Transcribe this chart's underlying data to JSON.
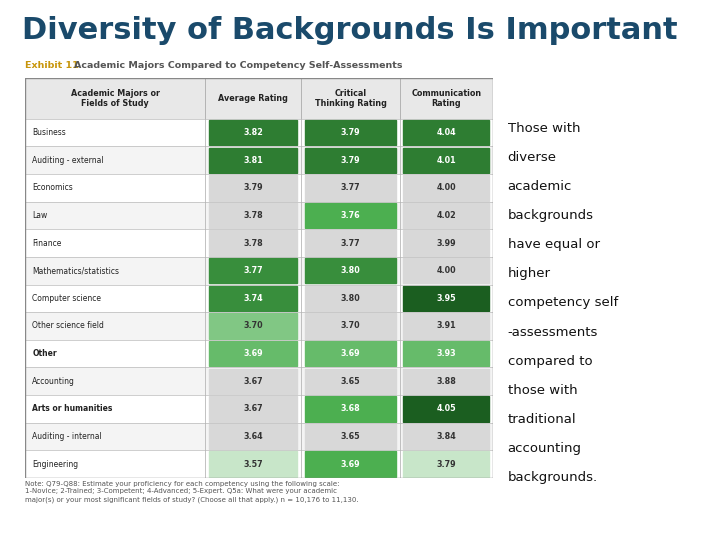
{
  "title": "Diversity of Backgrounds Is Important",
  "title_color": "#1a4a6b",
  "title_fontsize": 22,
  "exhibit_label": "Exhibit 11",
  "exhibit_text": "Academic Majors Compared to Competency Self-Assessments",
  "exhibit_color": "#c8960c",
  "side_text_lines": [
    "Those with",
    "diverse",
    "academic",
    "backgrounds",
    "have equal or",
    "higher",
    "competency self",
    "-assessments",
    "compared to",
    "those with",
    "traditional",
    "accounting",
    "backgrounds."
  ],
  "note_text": "Note: Q79-Q88: Estimate your proficiency for each competency using the following scale:\n1-Novice; 2-Trained; 3-Competent; 4-Advanced; 5-Expert. Q5a: What were your academic\nmajor(s) or your most significant fields of study? (Choose all that apply.) n = 10,176 to 11,130.",
  "col_headers": [
    "Academic Majors or\nFields of Study",
    "Average Rating",
    "Critical\nThinking Rating",
    "Communication\nRating"
  ],
  "rows": [
    {
      "label": "Business",
      "avg": "3.82",
      "crit": "3.79",
      "comm": "4.04",
      "avg_bg": "#2e7d32",
      "crit_bg": "#2e7d32",
      "comm_bg": "#2e7d32",
      "avg_fg": "white",
      "crit_fg": "white",
      "comm_fg": "white",
      "label_bold": false
    },
    {
      "label": "Auditing - external",
      "avg": "3.81",
      "crit": "3.79",
      "comm": "4.01",
      "avg_bg": "#2e7d32",
      "crit_bg": "#2e7d32",
      "comm_bg": "#2e7d32",
      "avg_fg": "white",
      "crit_fg": "white",
      "comm_fg": "white",
      "label_bold": false
    },
    {
      "label": "Economics",
      "avg": "3.79",
      "crit": "3.77",
      "comm": "4.00",
      "avg_bg": "#d8d8d8",
      "crit_bg": "#d8d8d8",
      "comm_bg": "#d8d8d8",
      "avg_fg": "#333333",
      "crit_fg": "#333333",
      "comm_fg": "#333333",
      "label_bold": false
    },
    {
      "label": "Law",
      "avg": "3.78",
      "crit": "3.76",
      "comm": "4.02",
      "avg_bg": "#d8d8d8",
      "crit_bg": "#4caf50",
      "comm_bg": "#d8d8d8",
      "avg_fg": "#333333",
      "crit_fg": "white",
      "comm_fg": "#333333",
      "label_bold": false
    },
    {
      "label": "Finance",
      "avg": "3.78",
      "crit": "3.77",
      "comm": "3.99",
      "avg_bg": "#d8d8d8",
      "crit_bg": "#d8d8d8",
      "comm_bg": "#d8d8d8",
      "avg_fg": "#333333",
      "crit_fg": "#333333",
      "comm_fg": "#333333",
      "label_bold": false
    },
    {
      "label": "Mathematics/statistics",
      "avg": "3.77",
      "crit": "3.80",
      "comm": "4.00",
      "avg_bg": "#388e3c",
      "crit_bg": "#388e3c",
      "comm_bg": "#d8d8d8",
      "avg_fg": "white",
      "crit_fg": "white",
      "comm_fg": "#333333",
      "label_bold": false
    },
    {
      "label": "Computer science",
      "avg": "3.74",
      "crit": "3.80",
      "comm": "3.95",
      "avg_bg": "#388e3c",
      "crit_bg": "#d8d8d8",
      "comm_bg": "#1b5e20",
      "avg_fg": "white",
      "crit_fg": "#333333",
      "comm_fg": "white",
      "label_bold": false
    },
    {
      "label": "Other science field",
      "avg": "3.70",
      "crit": "3.70",
      "comm": "3.91",
      "avg_bg": "#81c784",
      "crit_bg": "#d8d8d8",
      "comm_bg": "#d8d8d8",
      "avg_fg": "#333333",
      "crit_fg": "#333333",
      "comm_fg": "#333333",
      "label_bold": false
    },
    {
      "label": "Other",
      "avg": "3.69",
      "crit": "3.69",
      "comm": "3.93",
      "avg_bg": "#66bb6a",
      "crit_bg": "#66bb6a",
      "comm_bg": "#66bb6a",
      "avg_fg": "white",
      "crit_fg": "white",
      "comm_fg": "white",
      "label_bold": true
    },
    {
      "label": "Accounting",
      "avg": "3.67",
      "crit": "3.65",
      "comm": "3.88",
      "avg_bg": "#d8d8d8",
      "crit_bg": "#d8d8d8",
      "comm_bg": "#d8d8d8",
      "avg_fg": "#333333",
      "crit_fg": "#333333",
      "comm_fg": "#333333",
      "label_bold": false
    },
    {
      "label": "Arts or humanities",
      "avg": "3.67",
      "crit": "3.68",
      "comm": "4.05",
      "avg_bg": "#d8d8d8",
      "crit_bg": "#4caf50",
      "comm_bg": "#1b5e20",
      "avg_fg": "#333333",
      "crit_fg": "white",
      "comm_fg": "white",
      "label_bold": true
    },
    {
      "label": "Auditing - internal",
      "avg": "3.64",
      "crit": "3.65",
      "comm": "3.84",
      "avg_bg": "#d8d8d8",
      "crit_bg": "#d8d8d8",
      "comm_bg": "#d8d8d8",
      "avg_fg": "#333333",
      "crit_fg": "#333333",
      "comm_fg": "#333333",
      "label_bold": false
    },
    {
      "label": "Engineering",
      "avg": "3.57",
      "crit": "3.69",
      "comm": "3.79",
      "avg_bg": "#c8e6c9",
      "crit_bg": "#4caf50",
      "comm_bg": "#c8e6c9",
      "avg_fg": "#333333",
      "crit_fg": "white",
      "comm_fg": "#333333",
      "label_bold": false
    }
  ],
  "header_bg": "#e8e8e8",
  "header_fg": "#222222",
  "bg_color": "#ffffff",
  "table_border": "#aaaaaa",
  "table_outer_border": "#888888"
}
